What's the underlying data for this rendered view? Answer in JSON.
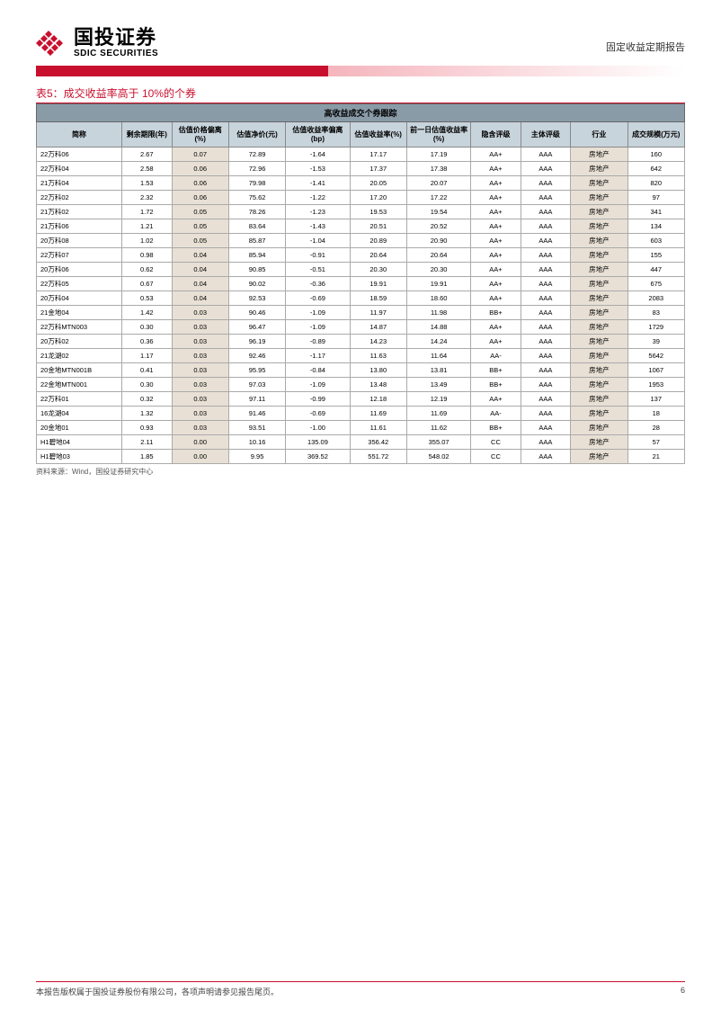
{
  "header": {
    "logo_cn": "国投证券",
    "logo_en": "SDIC SECURITIES",
    "report_type": "固定收益定期报告",
    "logo_color": "#c8102e"
  },
  "table": {
    "caption": "表5：成交收益率高于 10%的个券",
    "title_row": "高收益成交个券跟踪",
    "source": "资料来源：Wind，国投证券研究中心",
    "header_bg": "#c8d4dc",
    "title_bg": "#8a9ba8",
    "shade_bg": "#e8e0d5",
    "border_color": "#888888",
    "columns": [
      {
        "label": "简称",
        "width": "12%"
      },
      {
        "label": "剩余期限(年)",
        "width": "7%"
      },
      {
        "label": "估值价格偏离(%)",
        "width": "8%"
      },
      {
        "label": "估值净价(元)",
        "width": "8%"
      },
      {
        "label": "估值收益率偏离(bp)",
        "width": "9%"
      },
      {
        "label": "估值收益率(%)",
        "width": "8%"
      },
      {
        "label": "前一日估值收益率(%)",
        "width": "9%"
      },
      {
        "label": "隐含评级",
        "width": "7%"
      },
      {
        "label": "主体评级",
        "width": "7%"
      },
      {
        "label": "行业",
        "width": "8%"
      },
      {
        "label": "成交规模(万元)",
        "width": "8%"
      }
    ],
    "shaded_columns": [
      2,
      9
    ],
    "rows": [
      [
        "22万科06",
        "2.67",
        "0.07",
        "72.89",
        "-1.64",
        "17.17",
        "17.19",
        "AA+",
        "AAA",
        "房地产",
        "160"
      ],
      [
        "22万科04",
        "2.58",
        "0.06",
        "72.96",
        "-1.53",
        "17.37",
        "17.38",
        "AA+",
        "AAA",
        "房地产",
        "642"
      ],
      [
        "21万科04",
        "1.53",
        "0.06",
        "79.98",
        "-1.41",
        "20.05",
        "20.07",
        "AA+",
        "AAA",
        "房地产",
        "820"
      ],
      [
        "22万科02",
        "2.32",
        "0.06",
        "75.62",
        "-1.22",
        "17.20",
        "17.22",
        "AA+",
        "AAA",
        "房地产",
        "97"
      ],
      [
        "21万科02",
        "1.72",
        "0.05",
        "78.26",
        "-1.23",
        "19.53",
        "19.54",
        "AA+",
        "AAA",
        "房地产",
        "341"
      ],
      [
        "21万科06",
        "1.21",
        "0.05",
        "83.64",
        "-1.43",
        "20.51",
        "20.52",
        "AA+",
        "AAA",
        "房地产",
        "134"
      ],
      [
        "20万科08",
        "1.02",
        "0.05",
        "85.87",
        "-1.04",
        "20.89",
        "20.90",
        "AA+",
        "AAA",
        "房地产",
        "603"
      ],
      [
        "22万科07",
        "0.98",
        "0.04",
        "85.94",
        "-0.91",
        "20.64",
        "20.64",
        "AA+",
        "AAA",
        "房地产",
        "155"
      ],
      [
        "20万科06",
        "0.62",
        "0.04",
        "90.85",
        "-0.51",
        "20.30",
        "20.30",
        "AA+",
        "AAA",
        "房地产",
        "447"
      ],
      [
        "22万科05",
        "0.67",
        "0.04",
        "90.02",
        "-0.36",
        "19.91",
        "19.91",
        "AA+",
        "AAA",
        "房地产",
        "675"
      ],
      [
        "20万科04",
        "0.53",
        "0.04",
        "92.53",
        "-0.69",
        "18.59",
        "18.60",
        "AA+",
        "AAA",
        "房地产",
        "2083"
      ],
      [
        "21金地04",
        "1.42",
        "0.03",
        "90.46",
        "-1.09",
        "11.97",
        "11.98",
        "BB+",
        "AAA",
        "房地产",
        "83"
      ],
      [
        "22万科MTN003",
        "0.30",
        "0.03",
        "96.47",
        "-1.09",
        "14.87",
        "14.88",
        "AA+",
        "AAA",
        "房地产",
        "1729"
      ],
      [
        "20万科02",
        "0.36",
        "0.03",
        "96.19",
        "-0.89",
        "14.23",
        "14.24",
        "AA+",
        "AAA",
        "房地产",
        "39"
      ],
      [
        "21龙湖02",
        "1.17",
        "0.03",
        "92.46",
        "-1.17",
        "11.63",
        "11.64",
        "AA-",
        "AAA",
        "房地产",
        "5642"
      ],
      [
        "20金地MTN001B",
        "0.41",
        "0.03",
        "95.95",
        "-0.84",
        "13.80",
        "13.81",
        "BB+",
        "AAA",
        "房地产",
        "1067"
      ],
      [
        "22金地MTN001",
        "0.30",
        "0.03",
        "97.03",
        "-1.09",
        "13.48",
        "13.49",
        "BB+",
        "AAA",
        "房地产",
        "1953"
      ],
      [
        "22万科01",
        "0.32",
        "0.03",
        "97.11",
        "-0.99",
        "12.18",
        "12.19",
        "AA+",
        "AAA",
        "房地产",
        "137"
      ],
      [
        "16龙湖04",
        "1.32",
        "0.03",
        "91.46",
        "-0.69",
        "11.69",
        "11.69",
        "AA-",
        "AAA",
        "房地产",
        "18"
      ],
      [
        "20金地01",
        "0.93",
        "0.03",
        "93.51",
        "-1.00",
        "11.61",
        "11.62",
        "BB+",
        "AAA",
        "房地产",
        "28"
      ],
      [
        "H1碧地04",
        "2.11",
        "0.00",
        "10.16",
        "135.09",
        "356.42",
        "355.07",
        "CC",
        "AAA",
        "房地产",
        "57"
      ],
      [
        "H1碧地03",
        "1.85",
        "0.00",
        "9.95",
        "369.52",
        "551.72",
        "548.02",
        "CC",
        "AAA",
        "房地产",
        "21"
      ]
    ]
  },
  "footer": {
    "copyright": "本报告版权属于国投证券股份有限公司，各项声明请参见报告尾页。",
    "page": "6"
  }
}
